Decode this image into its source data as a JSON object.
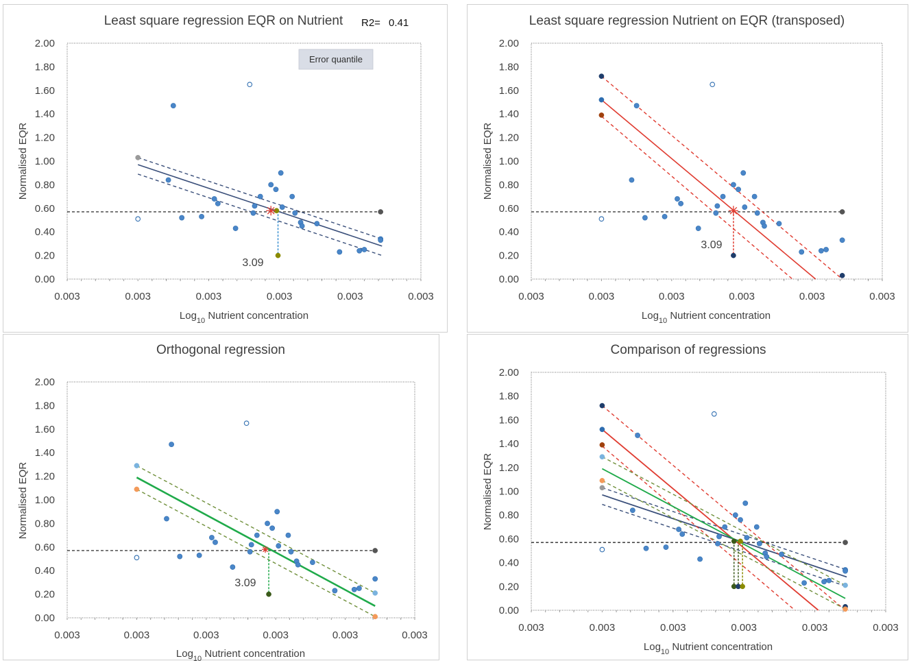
{
  "colors": {
    "point": "#4a86c8",
    "point_edge": "#2e6db0",
    "least_squares": "#3a4f7a",
    "transposed": "#e03c31",
    "orthogonal": "#1faa4a",
    "orthogonal_band": "#6f8f3a",
    "reference": "#111111",
    "marker_gray": "#9a9a9a",
    "marker_dark": "#555555",
    "marker_olive": "#8a8a00",
    "marker_orange": "#f39a5a",
    "marker_light": "#7ab3de",
    "marker_navy": "#1f3d6b",
    "marker_brown": "#a0410d",
    "marker_darkgreen": "#3b5a1a"
  },
  "chart_data": [
    {
      "type": "scatter",
      "title": "Least square regression EQR on Nutrient",
      "r2_label": "R2=",
      "r2_value": "0.41",
      "button_label": "Error quantile",
      "xlabel_main": "Log",
      "xlabel_sub": "10",
      "xlabel_rest": " Nutrient concentration",
      "ylabel": "Normalised EQR",
      "xlim": [
        0,
        5
      ],
      "ylim": [
        0,
        2
      ],
      "x_tick_labels": [
        "0.003",
        "0.003",
        "0.003",
        "0.003",
        "0.003",
        "0.003"
      ],
      "y_tick_labels": [
        "0.00",
        "0.20",
        "0.40",
        "0.60",
        "0.80",
        "1.00",
        "1.20",
        "1.40",
        "1.60",
        "1.80",
        "2.00"
      ],
      "annotation": "3.09",
      "points": [
        [
          1.5,
          1.47
        ],
        [
          1.43,
          0.84
        ],
        [
          1.62,
          0.52
        ],
        [
          1.9,
          0.53
        ],
        [
          2.08,
          0.68
        ],
        [
          2.13,
          0.64
        ],
        [
          2.38,
          0.43
        ],
        [
          2.63,
          0.56
        ],
        [
          2.65,
          0.62
        ],
        [
          2.73,
          0.7
        ],
        [
          2.88,
          0.8
        ],
        [
          2.95,
          0.76
        ],
        [
          3.02,
          0.9
        ],
        [
          3.04,
          0.61
        ],
        [
          3.18,
          0.7
        ],
        [
          3.22,
          0.56
        ],
        [
          3.3,
          0.48
        ],
        [
          3.32,
          0.45
        ],
        [
          3.53,
          0.47
        ],
        [
          3.85,
          0.23
        ],
        [
          4.13,
          0.24
        ],
        [
          4.2,
          0.25
        ],
        [
          4.43,
          0.34
        ],
        [
          4.43,
          0.33
        ]
      ],
      "open_points": [
        [
          2.58,
          1.65
        ],
        [
          1.0,
          0.51
        ]
      ],
      "regression": {
        "x": [
          1.0,
          4.45
        ],
        "y": [
          0.97,
          0.28
        ]
      },
      "band_upper": {
        "x": [
          1.0,
          4.45
        ],
        "y": [
          1.03,
          0.34
        ]
      },
      "band_lower": {
        "x": [
          1.0,
          4.45
        ],
        "y": [
          0.89,
          0.2
        ]
      },
      "reference_y": 0.57,
      "reference_x": [
        0,
        4.43
      ],
      "centroid": [
        2.88,
        0.58
      ],
      "drop": {
        "x": 2.98,
        "y_from": 0.58,
        "y_to": 0.2,
        "color": "#3a8fd0"
      },
      "markers": [
        {
          "x": 1.0,
          "y": 1.03,
          "color": "#9a9a9a"
        },
        {
          "x": 4.43,
          "y": 0.57,
          "color": "#555555"
        },
        {
          "x": 2.98,
          "y": 0.2,
          "color": "#8a8a00"
        },
        {
          "x": 2.96,
          "y": 0.58,
          "color": "#8a8a00"
        }
      ]
    },
    {
      "type": "scatter",
      "title": "Least square regression Nutrient on EQR (transposed)",
      "xlabel_main": "Log",
      "xlabel_sub": "10",
      "xlabel_rest": " Nutrient concentration",
      "ylabel": "Normalised EQR",
      "xlim": [
        0,
        5
      ],
      "ylim": [
        0,
        2
      ],
      "x_tick_labels": [
        "0.003",
        "0.003",
        "0.003",
        "0.003",
        "0.003",
        "0.003"
      ],
      "y_tick_labels": [
        "0.00",
        "0.20",
        "0.40",
        "0.60",
        "0.80",
        "1.00",
        "1.20",
        "1.40",
        "1.60",
        "1.80",
        "2.00"
      ],
      "annotation": "3.09",
      "points": [
        [
          1.5,
          1.47
        ],
        [
          1.43,
          0.84
        ],
        [
          1.62,
          0.52
        ],
        [
          1.9,
          0.53
        ],
        [
          2.08,
          0.68
        ],
        [
          2.13,
          0.64
        ],
        [
          2.38,
          0.43
        ],
        [
          2.63,
          0.56
        ],
        [
          2.65,
          0.62
        ],
        [
          2.73,
          0.7
        ],
        [
          2.88,
          0.8
        ],
        [
          2.95,
          0.76
        ],
        [
          3.02,
          0.9
        ],
        [
          3.04,
          0.61
        ],
        [
          3.18,
          0.7
        ],
        [
          3.22,
          0.56
        ],
        [
          3.3,
          0.48
        ],
        [
          3.32,
          0.45
        ],
        [
          3.53,
          0.47
        ],
        [
          3.85,
          0.23
        ],
        [
          4.13,
          0.24
        ],
        [
          4.2,
          0.25
        ],
        [
          4.43,
          0.33
        ]
      ],
      "open_points": [
        [
          2.58,
          1.65
        ],
        [
          1.0,
          0.51
        ]
      ],
      "regression": {
        "x": [
          1.0,
          4.05
        ],
        "y": [
          1.52,
          0.0
        ]
      },
      "band_upper": {
        "x": [
          1.0,
          4.43
        ],
        "y": [
          1.72,
          0.0
        ]
      },
      "band_lower": {
        "x": [
          1.0,
          3.72
        ],
        "y": [
          1.38,
          0.0
        ]
      },
      "reference_y": 0.57,
      "reference_x": [
        0,
        4.43
      ],
      "centroid": [
        2.88,
        0.58
      ],
      "drop": {
        "x": 2.88,
        "y_from": 0.58,
        "y_to": 0.2,
        "color": "#e03c31"
      },
      "markers": [
        {
          "x": 1.0,
          "y": 1.72,
          "color": "#1f3d6b"
        },
        {
          "x": 1.0,
          "y": 1.52,
          "color": "#2e6db0"
        },
        {
          "x": 1.0,
          "y": 1.39,
          "color": "#a0410d"
        },
        {
          "x": 4.43,
          "y": 0.57,
          "color": "#555555"
        },
        {
          "x": 2.88,
          "y": 0.2,
          "color": "#1f3d6b"
        },
        {
          "x": 4.43,
          "y": 0.03,
          "color": "#1f3d6b"
        }
      ]
    },
    {
      "type": "scatter",
      "title": "Orthogonal regression",
      "xlabel_main": "Log",
      "xlabel_sub": "10",
      "xlabel_rest": " Nutrient concentration",
      "ylabel": "Normalised EQR",
      "xlim": [
        0,
        5
      ],
      "ylim": [
        0,
        2
      ],
      "x_tick_labels": [
        "0.003",
        "0.003",
        "0.003",
        "0.003",
        "0.003",
        "0.003"
      ],
      "y_tick_labels": [
        "0.00",
        "0.20",
        "0.40",
        "0.60",
        "0.80",
        "1.00",
        "1.20",
        "1.40",
        "1.60",
        "1.80",
        "2.00"
      ],
      "annotation": "3.09",
      "points": [
        [
          1.5,
          1.47
        ],
        [
          1.43,
          0.84
        ],
        [
          1.62,
          0.52
        ],
        [
          1.9,
          0.53
        ],
        [
          2.08,
          0.68
        ],
        [
          2.13,
          0.64
        ],
        [
          2.38,
          0.43
        ],
        [
          2.63,
          0.56
        ],
        [
          2.65,
          0.62
        ],
        [
          2.73,
          0.7
        ],
        [
          2.88,
          0.8
        ],
        [
          2.95,
          0.76
        ],
        [
          3.02,
          0.9
        ],
        [
          3.04,
          0.61
        ],
        [
          3.18,
          0.7
        ],
        [
          3.22,
          0.56
        ],
        [
          3.3,
          0.48
        ],
        [
          3.32,
          0.45
        ],
        [
          3.53,
          0.47
        ],
        [
          3.85,
          0.23
        ],
        [
          4.13,
          0.24
        ],
        [
          4.2,
          0.25
        ],
        [
          4.43,
          0.33
        ]
      ],
      "open_points": [
        [
          2.58,
          1.65
        ],
        [
          1.0,
          0.51
        ]
      ],
      "regression": {
        "x": [
          1.0,
          4.43
        ],
        "y": [
          1.19,
          0.1
        ]
      },
      "band_upper": {
        "x": [
          1.0,
          4.43
        ],
        "y": [
          1.29,
          0.21
        ]
      },
      "band_lower": {
        "x": [
          1.0,
          4.43
        ],
        "y": [
          1.09,
          0.01
        ]
      },
      "reference_y": 0.57,
      "reference_x": [
        0,
        4.43
      ],
      "centroid": [
        2.85,
        0.58
      ],
      "drop": {
        "x": 2.9,
        "y_from": 0.58,
        "y_to": 0.2,
        "color": "#1faa4a"
      },
      "markers": [
        {
          "x": 1.0,
          "y": 1.29,
          "color": "#7ab3de"
        },
        {
          "x": 1.0,
          "y": 1.09,
          "color": "#f39a5a"
        },
        {
          "x": 4.43,
          "y": 0.57,
          "color": "#555555"
        },
        {
          "x": 4.43,
          "y": 0.21,
          "color": "#7ab3de"
        },
        {
          "x": 4.43,
          "y": 0.01,
          "color": "#f39a5a"
        },
        {
          "x": 2.9,
          "y": 0.2,
          "color": "#3b5a1a"
        }
      ]
    },
    {
      "type": "scatter",
      "title": "Comparison of regressions",
      "xlabel_main": "Log",
      "xlabel_sub": "10",
      "xlabel_rest": " Nutrient concentration",
      "ylabel": "Normalised EQR",
      "xlim": [
        0,
        5
      ],
      "ylim": [
        0,
        2
      ],
      "x_tick_labels": [
        "0.003",
        "0.003",
        "0.003",
        "0.003",
        "0.003",
        "0.003"
      ],
      "y_tick_labels": [
        "0.00",
        "0.20",
        "0.40",
        "0.60",
        "0.80",
        "1.00",
        "1.20",
        "1.40",
        "1.60",
        "1.80",
        "2.00"
      ],
      "annotation": "",
      "points": [
        [
          1.5,
          1.47
        ],
        [
          1.43,
          0.84
        ],
        [
          1.62,
          0.52
        ],
        [
          1.9,
          0.53
        ],
        [
          2.08,
          0.68
        ],
        [
          2.13,
          0.64
        ],
        [
          2.38,
          0.43
        ],
        [
          2.63,
          0.56
        ],
        [
          2.65,
          0.62
        ],
        [
          2.73,
          0.7
        ],
        [
          2.88,
          0.8
        ],
        [
          2.95,
          0.76
        ],
        [
          3.02,
          0.9
        ],
        [
          3.04,
          0.61
        ],
        [
          3.18,
          0.7
        ],
        [
          3.22,
          0.56
        ],
        [
          3.3,
          0.48
        ],
        [
          3.32,
          0.45
        ],
        [
          3.53,
          0.47
        ],
        [
          3.85,
          0.23
        ],
        [
          4.13,
          0.24
        ],
        [
          4.2,
          0.25
        ],
        [
          4.43,
          0.34
        ],
        [
          4.43,
          0.33
        ]
      ],
      "open_points": [
        [
          2.58,
          1.65
        ],
        [
          1.0,
          0.51
        ]
      ],
      "lines": [
        {
          "x": [
            1.0,
            4.45
          ],
          "y": [
            1.03,
            0.34
          ],
          "color": "#3a4f7a",
          "dash": true
        },
        {
          "x": [
            1.0,
            4.45
          ],
          "y": [
            0.97,
            0.28
          ],
          "color": "#3a4f7a",
          "dash": false
        },
        {
          "x": [
            1.0,
            4.45
          ],
          "y": [
            0.89,
            0.2
          ],
          "color": "#3a4f7a",
          "dash": true
        },
        {
          "x": [
            1.0,
            4.43
          ],
          "y": [
            1.72,
            0.0
          ],
          "color": "#e03c31",
          "dash": true
        },
        {
          "x": [
            1.0,
            4.05
          ],
          "y": [
            1.52,
            0.0
          ],
          "color": "#e03c31",
          "dash": false
        },
        {
          "x": [
            1.0,
            3.72
          ],
          "y": [
            1.38,
            0.0
          ],
          "color": "#e03c31",
          "dash": true
        },
        {
          "x": [
            1.0,
            4.43
          ],
          "y": [
            1.29,
            0.21
          ],
          "color": "#6f8f3a",
          "dash": true
        },
        {
          "x": [
            1.0,
            4.43
          ],
          "y": [
            1.19,
            0.1
          ],
          "color": "#1faa4a",
          "dash": false
        },
        {
          "x": [
            1.0,
            4.43
          ],
          "y": [
            1.09,
            0.01
          ],
          "color": "#6f8f3a",
          "dash": true
        }
      ],
      "reference_y": 0.57,
      "reference_x": [
        0,
        4.43
      ],
      "drops": [
        {
          "x": 2.86,
          "y_from": 0.58,
          "y_to": 0.2,
          "color": "#3b5a1a"
        },
        {
          "x": 2.92,
          "y_from": 0.58,
          "y_to": 0.2,
          "color": "#3b5a1a"
        },
        {
          "x": 2.98,
          "y_from": 0.58,
          "y_to": 0.2,
          "color": "#8a8a00"
        }
      ],
      "markers": [
        {
          "x": 1.0,
          "y": 1.72,
          "color": "#1f3d6b"
        },
        {
          "x": 1.0,
          "y": 1.52,
          "color": "#2e6db0"
        },
        {
          "x": 1.0,
          "y": 1.39,
          "color": "#a0410d"
        },
        {
          "x": 1.0,
          "y": 1.29,
          "color": "#7ab3de"
        },
        {
          "x": 1.0,
          "y": 1.09,
          "color": "#f39a5a"
        },
        {
          "x": 1.0,
          "y": 1.03,
          "color": "#9a9a9a"
        },
        {
          "x": 4.43,
          "y": 0.57,
          "color": "#555555"
        },
        {
          "x": 4.43,
          "y": 0.21,
          "color": "#7ab3de"
        },
        {
          "x": 4.43,
          "y": 0.03,
          "color": "#1f3d6b"
        },
        {
          "x": 4.43,
          "y": 0.01,
          "color": "#f39a5a"
        },
        {
          "x": 2.86,
          "y": 0.2,
          "color": "#3b5a1a"
        },
        {
          "x": 2.92,
          "y": 0.2,
          "color": "#1f3d6b"
        },
        {
          "x": 2.98,
          "y": 0.2,
          "color": "#8a8a00"
        },
        {
          "x": 2.86,
          "y": 0.58,
          "color": "#3b5a1a"
        },
        {
          "x": 2.95,
          "y": 0.58,
          "color": "#8a8a00"
        }
      ]
    }
  ]
}
